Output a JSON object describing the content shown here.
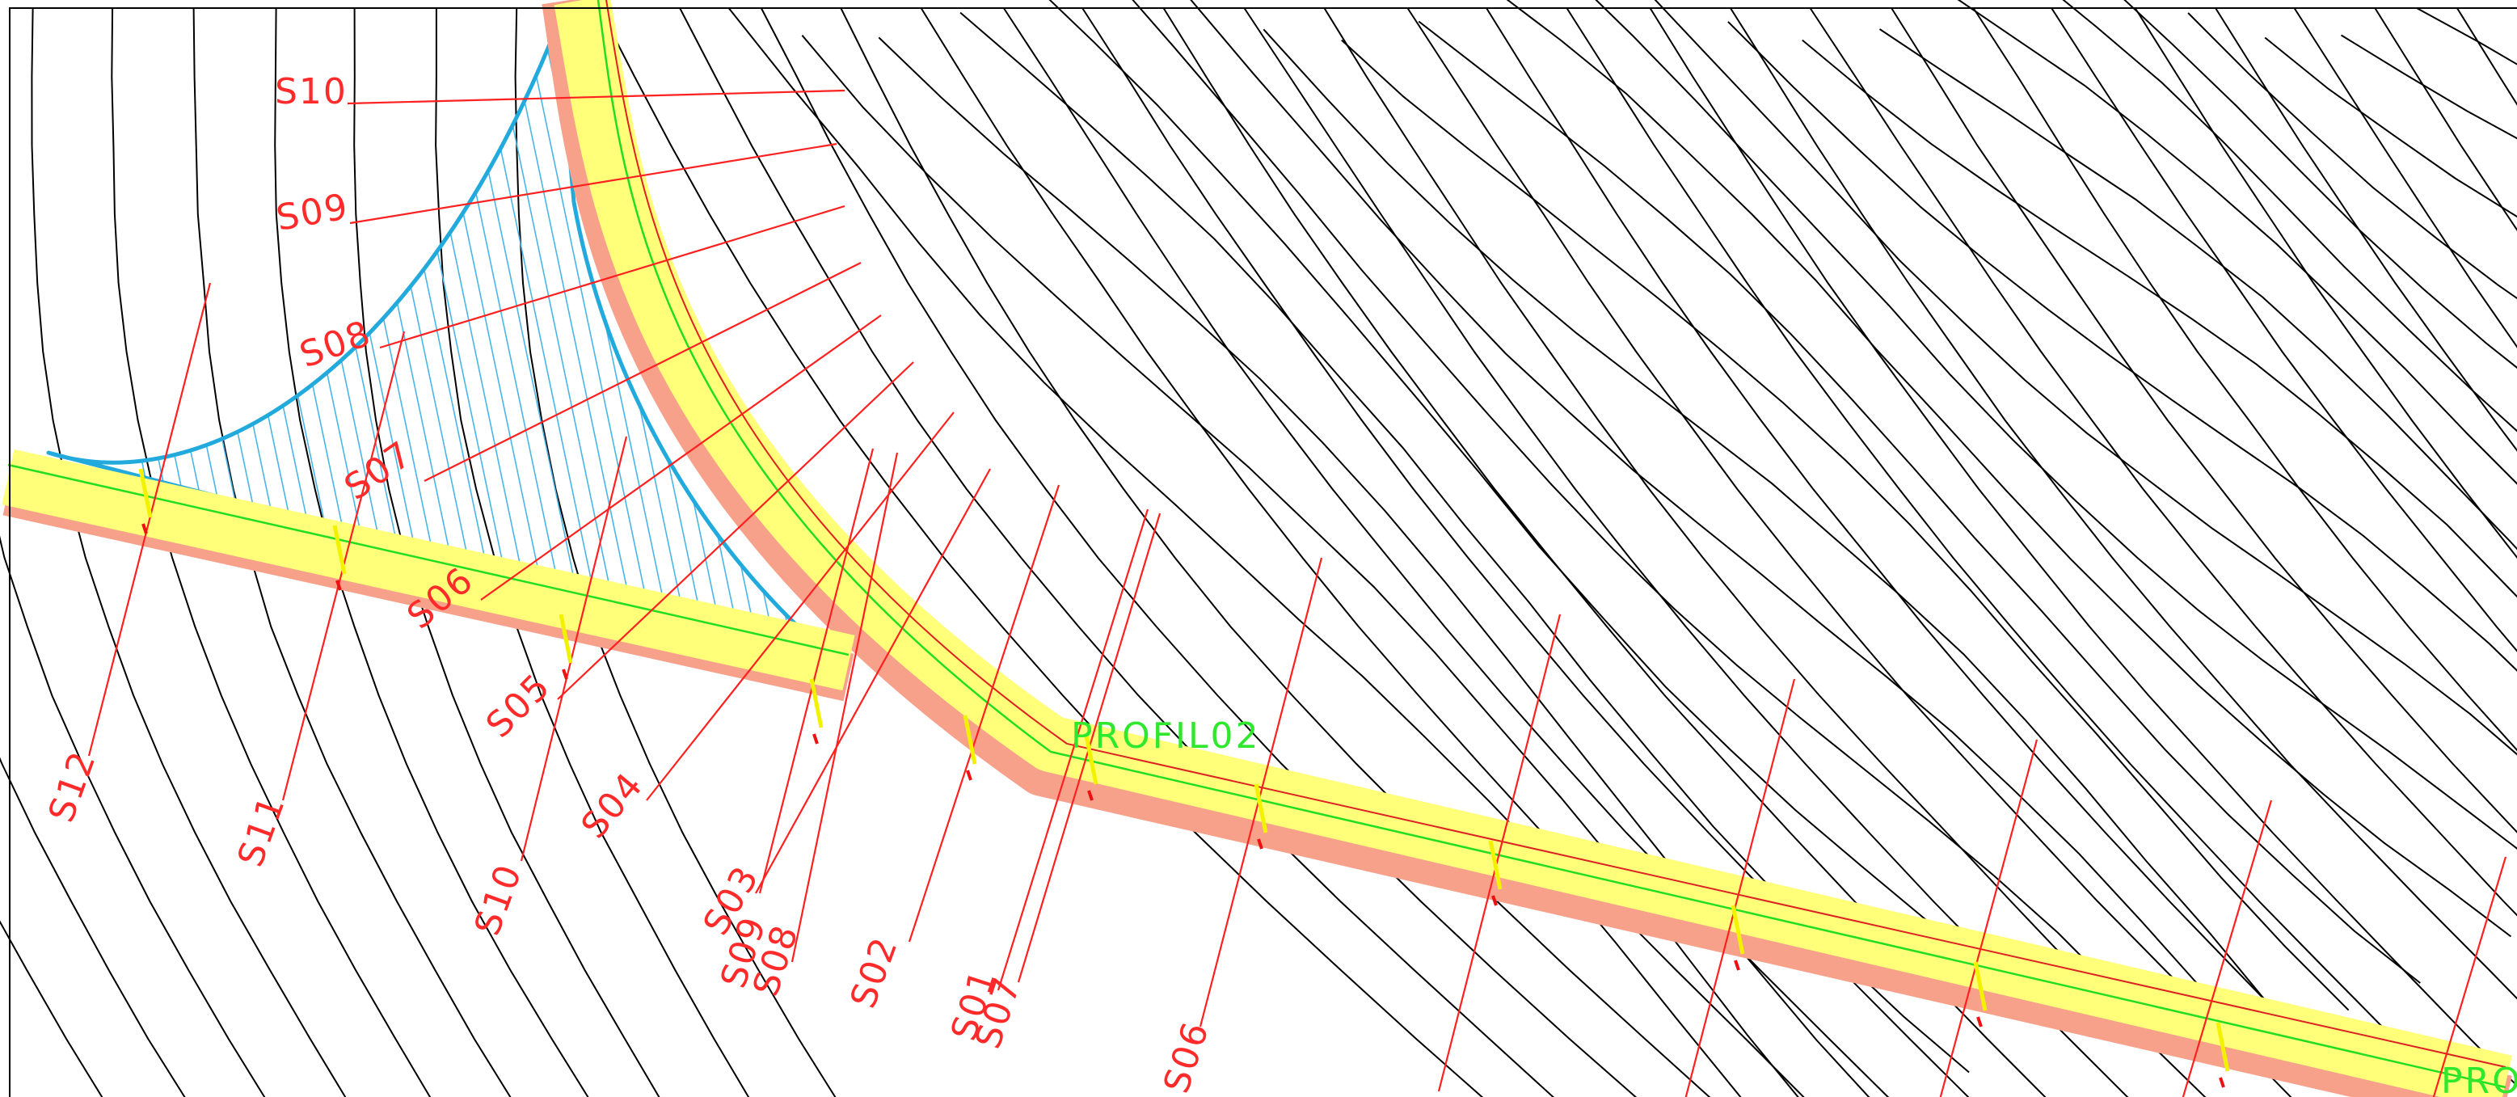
{
  "drawing": {
    "profiles": [
      {
        "id": "profile-02",
        "label": "PROFIL02"
      },
      {
        "id": "profile-main",
        "label": "PRO"
      }
    ],
    "sections": [
      {
        "id": "s10-top",
        "label": "S10"
      },
      {
        "id": "s09-top",
        "label": "S09"
      },
      {
        "id": "s08-top",
        "label": "S08"
      },
      {
        "id": "s07-top",
        "label": "S07"
      },
      {
        "id": "s06-top",
        "label": "S06"
      },
      {
        "id": "s05-top",
        "label": "S05"
      },
      {
        "id": "s04-top",
        "label": "S04"
      },
      {
        "id": "s03-top",
        "label": "S03"
      },
      {
        "id": "s02-top",
        "label": "S02"
      },
      {
        "id": "s01-top",
        "label": "S01"
      },
      {
        "id": "s12-bot",
        "label": "S12"
      },
      {
        "id": "s11-bot",
        "label": "S11"
      },
      {
        "id": "s10-bot",
        "label": "S10"
      },
      {
        "id": "s09-bot",
        "label": "S09"
      },
      {
        "id": "s08-bot",
        "label": "S08"
      },
      {
        "id": "s07-bot",
        "label": "S07"
      },
      {
        "id": "s06-bot",
        "label": "S06"
      }
    ],
    "colors": {
      "contour": "#000000",
      "section": "#ff2020",
      "band": "#ffff7a",
      "band_edge": "#f7a18a",
      "axis": "#22dd22",
      "zone": "#22aadd"
    }
  }
}
